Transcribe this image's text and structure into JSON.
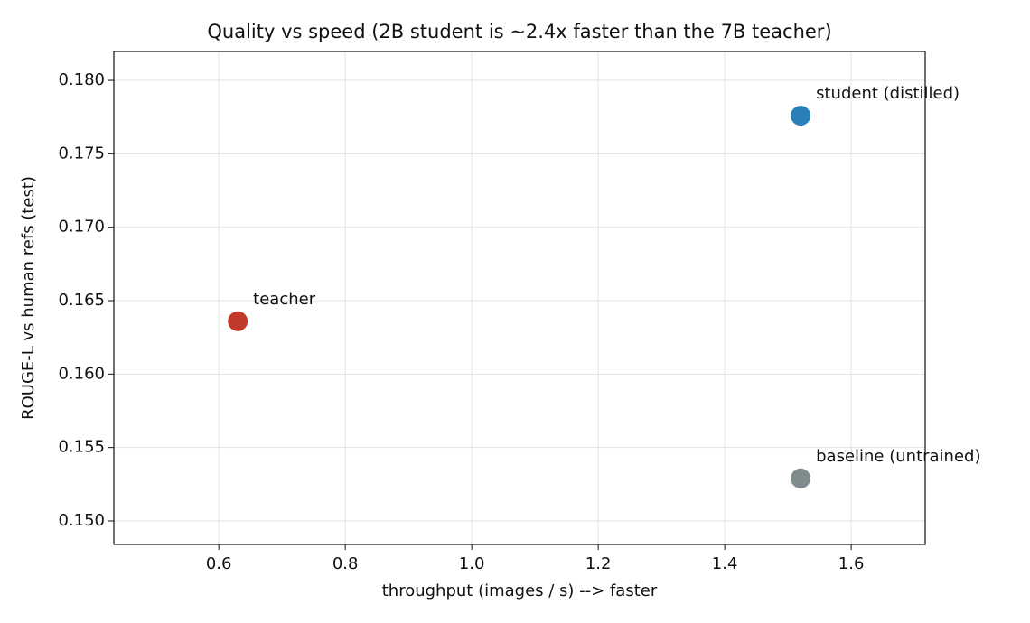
{
  "chart_data": {
    "type": "scatter",
    "title": "Quality vs speed (2B student is ~2.4x faster than the 7B teacher)",
    "xlabel": "throughput (images / s)  -->  faster",
    "ylabel": "ROUGE-L vs human refs (test)",
    "series": [
      {
        "name": "teacher",
        "color": "#c0392b",
        "x": [
          0.63
        ],
        "values": [
          0.1636
        ]
      },
      {
        "name": "student (distilled)",
        "color": "#2a7fba",
        "x": [
          1.52
        ],
        "values": [
          0.1776
        ]
      },
      {
        "name": "baseline (untrained)",
        "color": "#7f8c8d",
        "x": [
          1.52
        ],
        "values": [
          0.1529
        ]
      }
    ],
    "xlim": [
      0.434,
      1.717
    ],
    "xticks": [
      0.6,
      0.8,
      {
        "value": 1.0,
        "label": "1.0"
      },
      1.2,
      1.4,
      1.6
    ],
    "ylim": [
      0.1484,
      0.18197
    ],
    "yticks": [
      {
        "value": 0.15,
        "label": "0.150"
      },
      0.155,
      {
        "value": 0.16,
        "label": "0.160"
      },
      0.165,
      {
        "value": 0.17,
        "label": "0.170"
      },
      0.175,
      {
        "value": 0.18,
        "label": "0.180"
      }
    ],
    "grid": true
  }
}
